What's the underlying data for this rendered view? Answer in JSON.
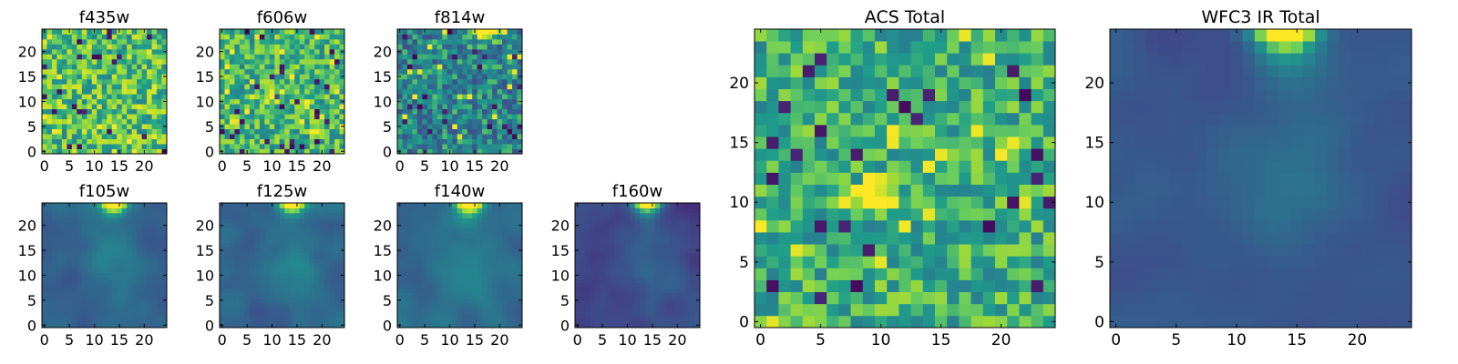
{
  "figure": {
    "colormap": "viridis",
    "colormap_stops": [
      "#440154",
      "#482777",
      "#3f4a8a",
      "#31678e",
      "#26838f",
      "#1f9d8a",
      "#6cce5a",
      "#b6de2b",
      "#fee825"
    ]
  },
  "chart_data": [
    {
      "type": "heatmap",
      "title": "f435w",
      "grid": "25x25",
      "pattern": "noise",
      "mean_level": 0.72,
      "noise": 0.22,
      "xticks": [
        "0",
        "5",
        "10",
        "15",
        "20"
      ],
      "yticks": [
        "0",
        "5",
        "10",
        "15",
        "20"
      ],
      "xlim": [
        -0.5,
        24.5
      ],
      "ylim": [
        -0.5,
        24.5
      ]
    },
    {
      "type": "heatmap",
      "title": "f606w",
      "grid": "25x25",
      "pattern": "noise",
      "mean_level": 0.68,
      "noise": 0.2,
      "xticks": [
        "0",
        "5",
        "10",
        "15",
        "20"
      ],
      "yticks": [
        "0",
        "5",
        "10",
        "15",
        "20"
      ],
      "xlim": [
        -0.5,
        24.5
      ],
      "ylim": [
        -0.5,
        24.5
      ]
    },
    {
      "type": "heatmap",
      "title": "f814w",
      "grid": "25x25",
      "pattern": "noise with bright top-right edge",
      "mean_level": 0.5,
      "noise": 0.22,
      "xticks": [
        "0",
        "5",
        "10",
        "15",
        "20"
      ],
      "yticks": [
        "0",
        "5",
        "10",
        "15",
        "20"
      ],
      "xlim": [
        -0.5,
        24.5
      ],
      "ylim": [
        -0.5,
        24.5
      ]
    },
    {
      "type": "heatmap",
      "title": "f105w",
      "grid": "25x25",
      "pattern": "smooth, bright top edge near x=12-16",
      "mean_level": 0.35,
      "noise": 0.08,
      "xticks": [
        "0",
        "5",
        "10",
        "15",
        "20"
      ],
      "yticks": [
        "0",
        "5",
        "10",
        "15",
        "20"
      ],
      "xlim": [
        -0.5,
        24.5
      ],
      "ylim": [
        -0.5,
        24.5
      ]
    },
    {
      "type": "heatmap",
      "title": "f125w",
      "grid": "25x25",
      "pattern": "smooth, bright top edge near x=12-16",
      "mean_level": 0.37,
      "noise": 0.08,
      "xticks": [
        "0",
        "5",
        "10",
        "15",
        "20"
      ],
      "yticks": [
        "0",
        "5",
        "10",
        "15",
        "20"
      ],
      "xlim": [
        -0.5,
        24.5
      ],
      "ylim": [
        -0.5,
        24.5
      ]
    },
    {
      "type": "heatmap",
      "title": "f140w",
      "grid": "25x25",
      "pattern": "smooth, bright top edge near x=12-16",
      "mean_level": 0.38,
      "noise": 0.08,
      "xticks": [
        "0",
        "5",
        "10",
        "15",
        "20"
      ],
      "yticks": [
        "0",
        "5",
        "10",
        "15",
        "20"
      ],
      "xlim": [
        -0.5,
        24.5
      ],
      "ylim": [
        -0.5,
        24.5
      ]
    },
    {
      "type": "heatmap",
      "title": "f160w",
      "grid": "25x25",
      "pattern": "smooth, dark, bright top edge near x=14-16",
      "mean_level": 0.25,
      "noise": 0.08,
      "xticks": [
        "0",
        "5",
        "10",
        "15",
        "20"
      ],
      "yticks": [
        "0",
        "5",
        "10",
        "15",
        "20"
      ],
      "xlim": [
        -0.5,
        24.5
      ],
      "ylim": [
        -0.5,
        24.5
      ]
    },
    {
      "type": "heatmap",
      "title": "ACS Total",
      "grid": "25x25",
      "pattern": "noise, bright patch near x=9-11 y=10-12",
      "mean_level": 0.66,
      "noise": 0.18,
      "xticks": [
        "0",
        "5",
        "10",
        "15",
        "20"
      ],
      "yticks": [
        "0",
        "5",
        "10",
        "15",
        "20"
      ],
      "xlim": [
        -0.5,
        24.5
      ],
      "ylim": [
        -0.5,
        24.5
      ]
    },
    {
      "type": "heatmap",
      "title": "WFC3 IR Total",
      "grid": "25x25",
      "pattern": "smooth, bright top edge near x=12-16",
      "mean_level": 0.3,
      "noise": 0.05,
      "xticks": [
        "0",
        "5",
        "10",
        "15",
        "20"
      ],
      "yticks": [
        "0",
        "5",
        "10",
        "15",
        "20"
      ],
      "xlim": [
        -0.5,
        24.5
      ],
      "ylim": [
        -0.5,
        24.5
      ]
    }
  ]
}
